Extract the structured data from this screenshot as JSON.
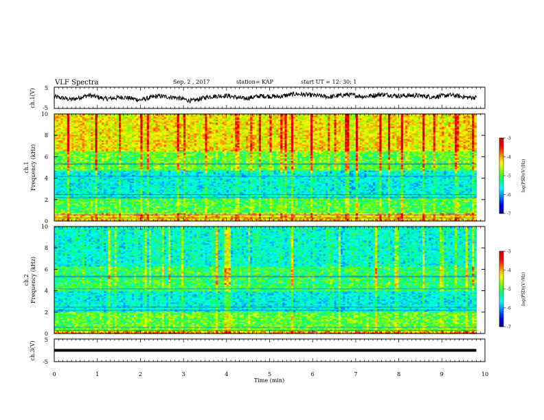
{
  "header": {
    "title": "VLF Spectra",
    "date": "Sep. 2 , 2017",
    "station": "station= KAP",
    "start": "start UT = 12: 30: 1"
  },
  "colors": {
    "trace": "#000000",
    "colormap": [
      "#000080",
      "#0000ff",
      "#0080ff",
      "#00ffff",
      "#00ff80",
      "#80ff00",
      "#ffff00",
      "#ff8000",
      "#ff0000",
      "#c00000"
    ]
  },
  "chart_data": [
    {
      "type": "line",
      "panel": "ch1",
      "ylabel": "ch.1(V)",
      "ylim": [
        -5,
        5
      ],
      "yticks": [
        "5",
        "-5"
      ],
      "xlim": [
        0,
        10
      ],
      "note_values": "noisy waveform oscillating roughly between -2.5 and 2.5 V over 0 to 9.8 min",
      "series": [
        {
          "x": [
            0.0,
            0.4,
            0.8,
            1.2,
            1.6,
            2.0,
            2.4,
            2.8,
            3.2,
            3.6,
            4.0,
            4.4,
            4.8,
            5.2,
            5.6,
            6.0,
            6.4,
            6.8,
            7.2,
            7.6,
            8.0,
            8.4,
            8.8,
            9.2,
            9.6,
            9.8
          ],
          "y": [
            0.5,
            -0.8,
            1.2,
            -0.5,
            0.3,
            -1.0,
            0.8,
            0.2,
            -1.5,
            0.6,
            1.0,
            -0.4,
            0.9,
            0.5,
            1.8,
            1.2,
            0.4,
            1.5,
            0.6,
            1.6,
            0.9,
            1.1,
            0.4,
            1.3,
            0.2,
            0.1
          ]
        }
      ]
    },
    {
      "type": "heatmap",
      "panel": "ch1-spectrogram",
      "ylabel": "ch.1 Frequency (kHz)",
      "xlim": [
        0,
        10
      ],
      "ylim": [
        0,
        10
      ],
      "yticks": [
        "0",
        "2",
        "4",
        "6",
        "8",
        "10"
      ],
      "data_extent_x": [
        0,
        9.8
      ],
      "colorbar": {
        "label": "log(PSD)(V²/Hz)",
        "range": [
          -7,
          -3
        ],
        "ticks": [
          "-3",
          "-4",
          "-5",
          "-6",
          "-7"
        ]
      },
      "bands_khz": [
        {
          "from": 0.0,
          "to": 0.8,
          "log_psd": -4.2
        },
        {
          "from": 0.8,
          "to": 2.2,
          "log_psd": -5.0
        },
        {
          "from": 2.2,
          "to": 4.8,
          "log_psd": -5.6
        },
        {
          "from": 4.8,
          "to": 6.5,
          "log_psd": -4.9
        },
        {
          "from": 6.5,
          "to": 10.0,
          "log_psd": -4.3
        }
      ]
    },
    {
      "type": "heatmap",
      "panel": "ch2-spectrogram",
      "ylabel": "ch.2 Frequency (kHz)",
      "xlim": [
        0,
        10
      ],
      "ylim": [
        0,
        10
      ],
      "yticks": [
        "0",
        "2",
        "4",
        "6",
        "8",
        "10"
      ],
      "data_extent_x": [
        0,
        9.8
      ],
      "colorbar": {
        "label": "log(PSD)(V²/Hz)",
        "range": [
          -7,
          -3
        ],
        "ticks": [
          "-3",
          "-4",
          "-5",
          "-6",
          "-7"
        ]
      },
      "bands_khz": [
        {
          "from": 0.0,
          "to": 0.3,
          "log_psd": -4.0
        },
        {
          "from": 0.3,
          "to": 2.0,
          "log_psd": -4.9
        },
        {
          "from": 2.0,
          "to": 4.0,
          "log_psd": -5.6
        },
        {
          "from": 4.0,
          "to": 6.3,
          "log_psd": -5.1
        },
        {
          "from": 6.3,
          "to": 10.0,
          "log_psd": -5.5
        }
      ]
    },
    {
      "type": "line",
      "panel": "ch3",
      "ylabel": "ch.3(V)",
      "xlabel": "Time (min)",
      "ylim": [
        -5,
        5
      ],
      "yticks": [
        "5",
        "-5"
      ],
      "xlim": [
        0,
        10
      ],
      "xticks": [
        "0",
        "1",
        "2",
        "3",
        "4",
        "5",
        "6",
        "7",
        "8",
        "9",
        "10"
      ],
      "series": [
        {
          "x": [
            0,
            9.8
          ],
          "y": [
            0,
            0
          ]
        }
      ]
    }
  ]
}
